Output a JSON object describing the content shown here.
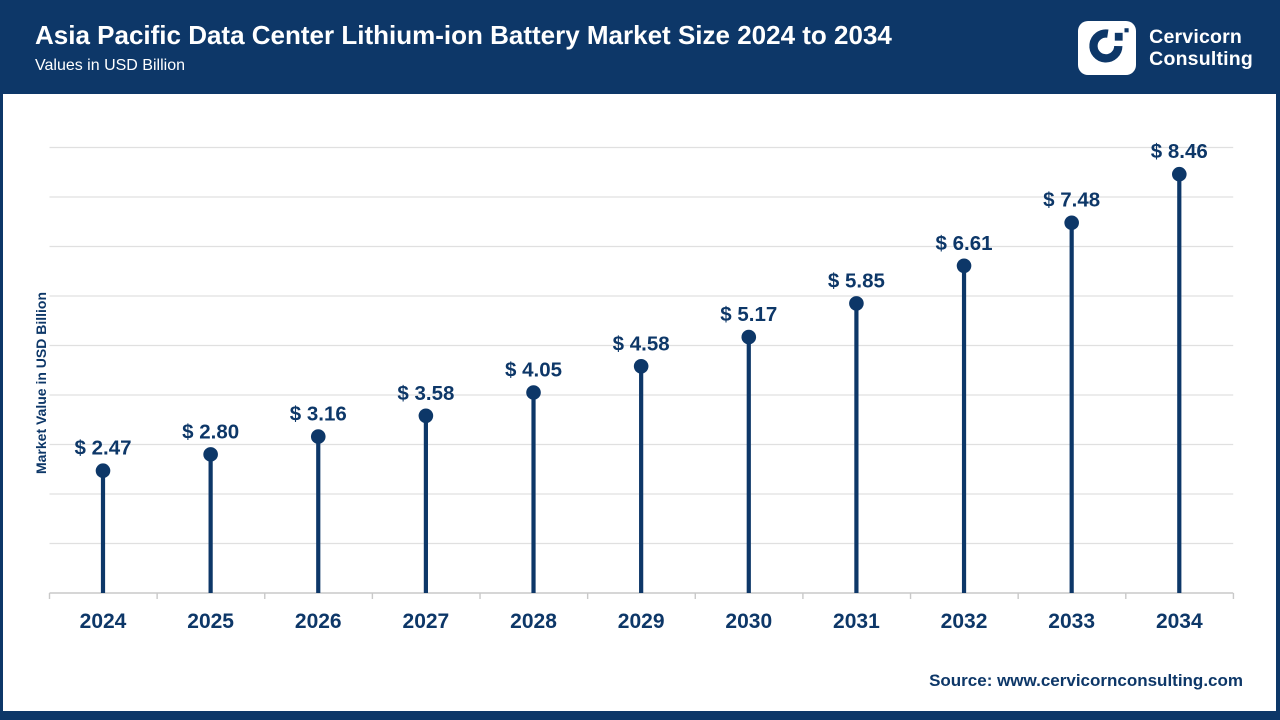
{
  "header": {
    "title": "Asia Pacific Data Center Lithium-ion Battery Market Size 2024 to 2034",
    "subtitle": "Values in USD Billion"
  },
  "logo": {
    "line1": "Cervicorn",
    "line2": "Consulting"
  },
  "chart_data": {
    "type": "lollipop",
    "title": "Asia Pacific Data Center Lithium-ion Battery Market Size 2024 to 2034",
    "subtitle": "Values in USD Billion",
    "categories": [
      "2024",
      "2025",
      "2026",
      "2027",
      "2028",
      "2029",
      "2030",
      "2031",
      "2032",
      "2033",
      "2034"
    ],
    "values": [
      2.47,
      2.8,
      3.16,
      3.58,
      4.05,
      4.58,
      5.17,
      5.85,
      6.61,
      7.48,
      8.46
    ],
    "value_labels": [
      "$ 2.47",
      "$ 2.80",
      "$ 3.16",
      "$ 3.58",
      "$ 4.05",
      "$ 4.58",
      "$ 5.17",
      "$ 5.85",
      "$ 6.61",
      "$ 7.48",
      "$ 8.46"
    ],
    "xlabel": "",
    "ylabel": "Market Value in USD Billion",
    "ylim": [
      0,
      9
    ],
    "grid_step": 1,
    "grid": "horizontal",
    "legend": "none"
  },
  "footer": {
    "source": "Source: www.cervicornconsulting.com"
  },
  "colors": {
    "navy": "#0d3768",
    "gridline": "#e0e0e0",
    "axis_line": "#c9c9c9",
    "background": "#ffffff",
    "header_text": "#ffffff"
  }
}
